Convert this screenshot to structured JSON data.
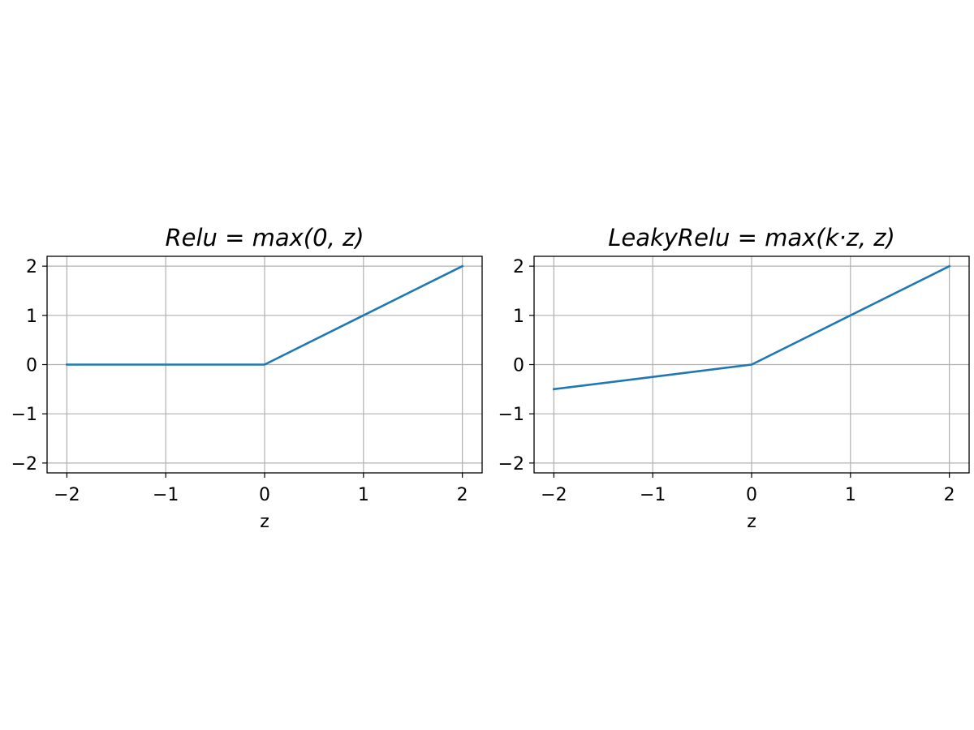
{
  "chart_data": [
    {
      "type": "line",
      "title": "Relu = max(0, z)",
      "xlabel": "z",
      "ylabel": "",
      "xlim": [
        -2.2,
        2.2
      ],
      "ylim": [
        -2.2,
        2.2
      ],
      "xticks": [
        -2,
        -1,
        0,
        1,
        2
      ],
      "yticks": [
        -2,
        -1,
        0,
        1,
        2
      ],
      "xtick_labels": [
        "−2",
        "−1",
        "0",
        "1",
        "2"
      ],
      "ytick_labels": [
        "−2",
        "−1",
        "0",
        "1",
        "2"
      ],
      "grid": true,
      "series": [
        {
          "x": [
            -2,
            -1,
            0,
            1,
            2
          ],
          "y": [
            0,
            0,
            0,
            1,
            2
          ],
          "color": "#1f77b4"
        }
      ]
    },
    {
      "type": "line",
      "title": "LeakyRelu = max(k·z, z)",
      "xlabel": "z",
      "ylabel": "",
      "xlim": [
        -2.2,
        2.2
      ],
      "ylim": [
        -2.2,
        2.2
      ],
      "xticks": [
        -2,
        -1,
        0,
        1,
        2
      ],
      "yticks": [
        -2,
        -1,
        0,
        1,
        2
      ],
      "xtick_labels": [
        "−2",
        "−1",
        "0",
        "1",
        "2"
      ],
      "ytick_labels": [
        "−2",
        "−1",
        "0",
        "1",
        "2"
      ],
      "grid": true,
      "series": [
        {
          "x": [
            -2,
            -1,
            0,
            1,
            2
          ],
          "y": [
            -0.5,
            -0.25,
            0,
            1,
            2
          ],
          "color": "#1f77b4"
        }
      ]
    }
  ],
  "colors": {
    "line": "#1f77b4",
    "grid": "#b0b0b0",
    "axes": "#000000",
    "background": "#ffffff"
  }
}
